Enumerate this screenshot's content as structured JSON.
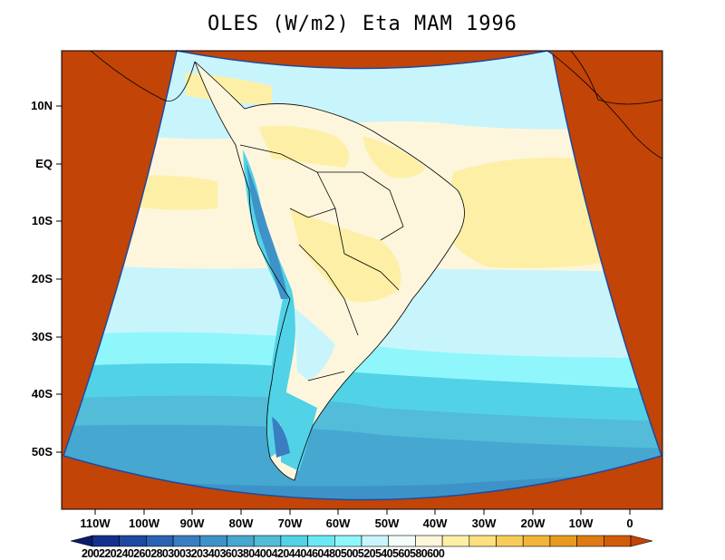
{
  "title": "OLES (W/m2) Eta MAM 1996",
  "lat_labels": [
    "10N",
    "EQ",
    "10S",
    "20S",
    "30S",
    "40S",
    "50S"
  ],
  "lon_labels": [
    "110W",
    "100W",
    "90W",
    "80W",
    "70W",
    "60W",
    "50W",
    "40W",
    "30W",
    "20W",
    "10W",
    "0"
  ],
  "colorbar": {
    "values": [
      200,
      220,
      240,
      260,
      280,
      300,
      320,
      340,
      360,
      380,
      400,
      420,
      440,
      460,
      480,
      500,
      520,
      540,
      560,
      580,
      600
    ],
    "colors": [
      "#0c1a6e",
      "#13308d",
      "#1c4aa3",
      "#2a63b3",
      "#3a7dc1",
      "#3d93c8",
      "#46a7d1",
      "#52bcd9",
      "#52d2e6",
      "#6ae8f4",
      "#8ff6fb",
      "#c8f5fc",
      "#f4fbfb",
      "#fdf6dd",
      "#fdf0a6",
      "#fce07f",
      "#f8cc5a",
      "#f2b53a",
      "#e89a1f",
      "#dd7a14",
      "#d25c0c",
      "#c24407"
    ],
    "label_text": "200220240260280300320340360380400420440460480500520540560580600"
  }
}
